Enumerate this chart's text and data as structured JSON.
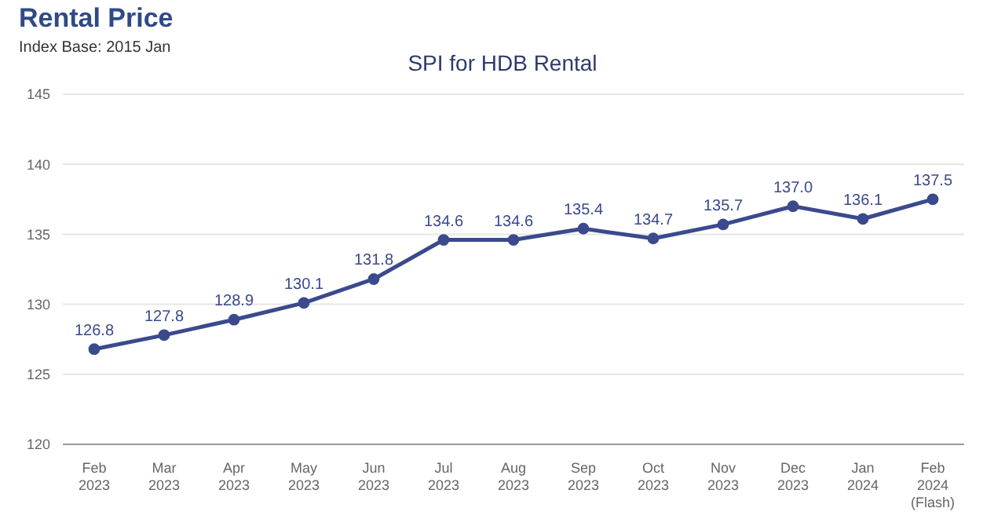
{
  "chart_data": {
    "type": "line",
    "title": "Rental Price",
    "subtitle": "Index Base: 2015 Jan",
    "annotations": [
      "SPI for HDB Rental"
    ],
    "categories": [
      "Feb 2023",
      "Mar 2023",
      "Apr 2023",
      "May 2023",
      "Jun 2023",
      "Jul 2023",
      "Aug 2023",
      "Sep 2023",
      "Oct 2023",
      "Nov 2023",
      "Dec 2023",
      "Jan 2024",
      "Feb 2024 (Flash)"
    ],
    "series": [
      {
        "color": "#3b4a8c",
        "values": [
          126.8,
          127.8,
          128.9,
          130.1,
          131.8,
          134.6,
          134.6,
          135.4,
          134.7,
          135.7,
          137.0,
          136.1,
          137.5
        ],
        "value_labels": [
          "126.8",
          "127.8",
          "128.9",
          "130.1",
          "131.8",
          "134.6",
          "134.6",
          "135.4",
          "134.7",
          "135.7",
          "137.0",
          "136.1",
          "137.5"
        ]
      }
    ],
    "ylim": [
      120,
      145
    ],
    "yticks": [
      120,
      125,
      130,
      135,
      140,
      145
    ],
    "grid": "y",
    "marker": "circle",
    "line_style": "solid"
  }
}
